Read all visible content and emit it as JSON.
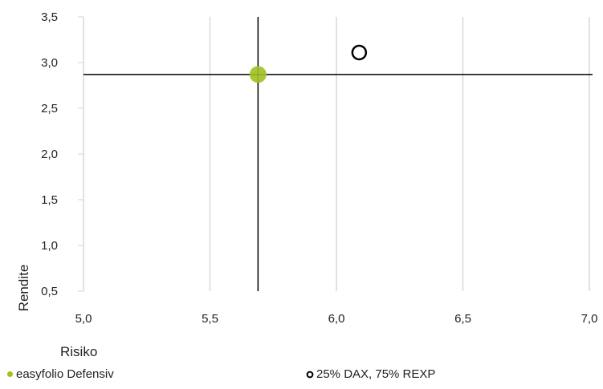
{
  "chart_data": {
    "type": "scatter",
    "title": "",
    "xlabel": "Risiko",
    "ylabel": "Rendite",
    "xlim": [
      5.0,
      7.0
    ],
    "ylim": [
      0.5,
      3.5
    ],
    "x_ticks": [
      "5,0",
      "5,5",
      "6,0",
      "6,5",
      "7,0"
    ],
    "x_tick_values": [
      5.0,
      5.5,
      6.0,
      6.5,
      7.0
    ],
    "y_ticks": [
      "0,5",
      "1,0",
      "1,5",
      "2,0",
      "2,5",
      "3,0",
      "3,5"
    ],
    "y_tick_values": [
      0.5,
      1.0,
      1.5,
      2.0,
      2.5,
      3.0,
      3.5
    ],
    "grid": "vertical",
    "legend_position": "bottom",
    "series": [
      {
        "name": "easyfolio Defensiv",
        "x": [
          5.69
        ],
        "y": [
          2.87
        ],
        "marker": "filled-circle",
        "color": "#a0c020"
      },
      {
        "name": "25% DAX, 75% REXP",
        "x": [
          6.09
        ],
        "y": [
          3.11
        ],
        "marker": "hollow-circle",
        "color": "#000000"
      }
    ],
    "crosshair": {
      "x": 5.69,
      "y": 2.87,
      "color": "#000000"
    }
  }
}
